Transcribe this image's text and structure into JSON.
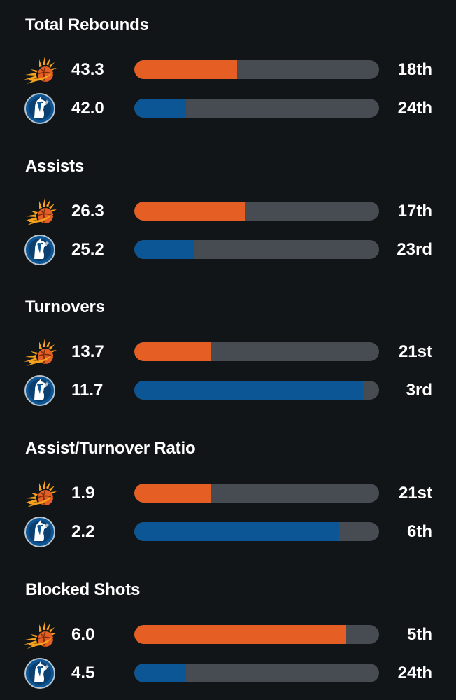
{
  "colors": {
    "background": "#121517",
    "bar_track": "#474c52",
    "suns": "#e55f25",
    "mavericks": "#0c5696"
  },
  "teams": {
    "suns": {
      "icon": "suns-logo-icon"
    },
    "mavericks": {
      "icon": "mavericks-logo-icon"
    }
  },
  "stats": [
    {
      "title": "Total Rebounds",
      "rows": [
        {
          "team": "suns",
          "value": "43.3",
          "rank": "18th",
          "fill": 0.42
        },
        {
          "team": "mavericks",
          "value": "42.0",
          "rank": "24th",
          "fill": 0.21
        }
      ]
    },
    {
      "title": "Assists",
      "rows": [
        {
          "team": "suns",
          "value": "26.3",
          "rank": "17th",
          "fill": 0.45
        },
        {
          "team": "mavericks",
          "value": "25.2",
          "rank": "23rd",
          "fill": 0.245
        }
      ]
    },
    {
      "title": "Turnovers",
      "rows": [
        {
          "team": "suns",
          "value": "13.7",
          "rank": "21st",
          "fill": 0.315
        },
        {
          "team": "mavericks",
          "value": "11.7",
          "rank": "3rd",
          "fill": 0.935
        }
      ]
    },
    {
      "title": "Assist/Turnover Ratio",
      "rows": [
        {
          "team": "suns",
          "value": "1.9",
          "rank": "21st",
          "fill": 0.315
        },
        {
          "team": "mavericks",
          "value": "2.2",
          "rank": "6th",
          "fill": 0.835
        }
      ]
    },
    {
      "title": "Blocked Shots",
      "rows": [
        {
          "team": "suns",
          "value": "6.0",
          "rank": "5th",
          "fill": 0.865
        },
        {
          "team": "mavericks",
          "value": "4.5",
          "rank": "24th",
          "fill": 0.21
        }
      ]
    }
  ]
}
